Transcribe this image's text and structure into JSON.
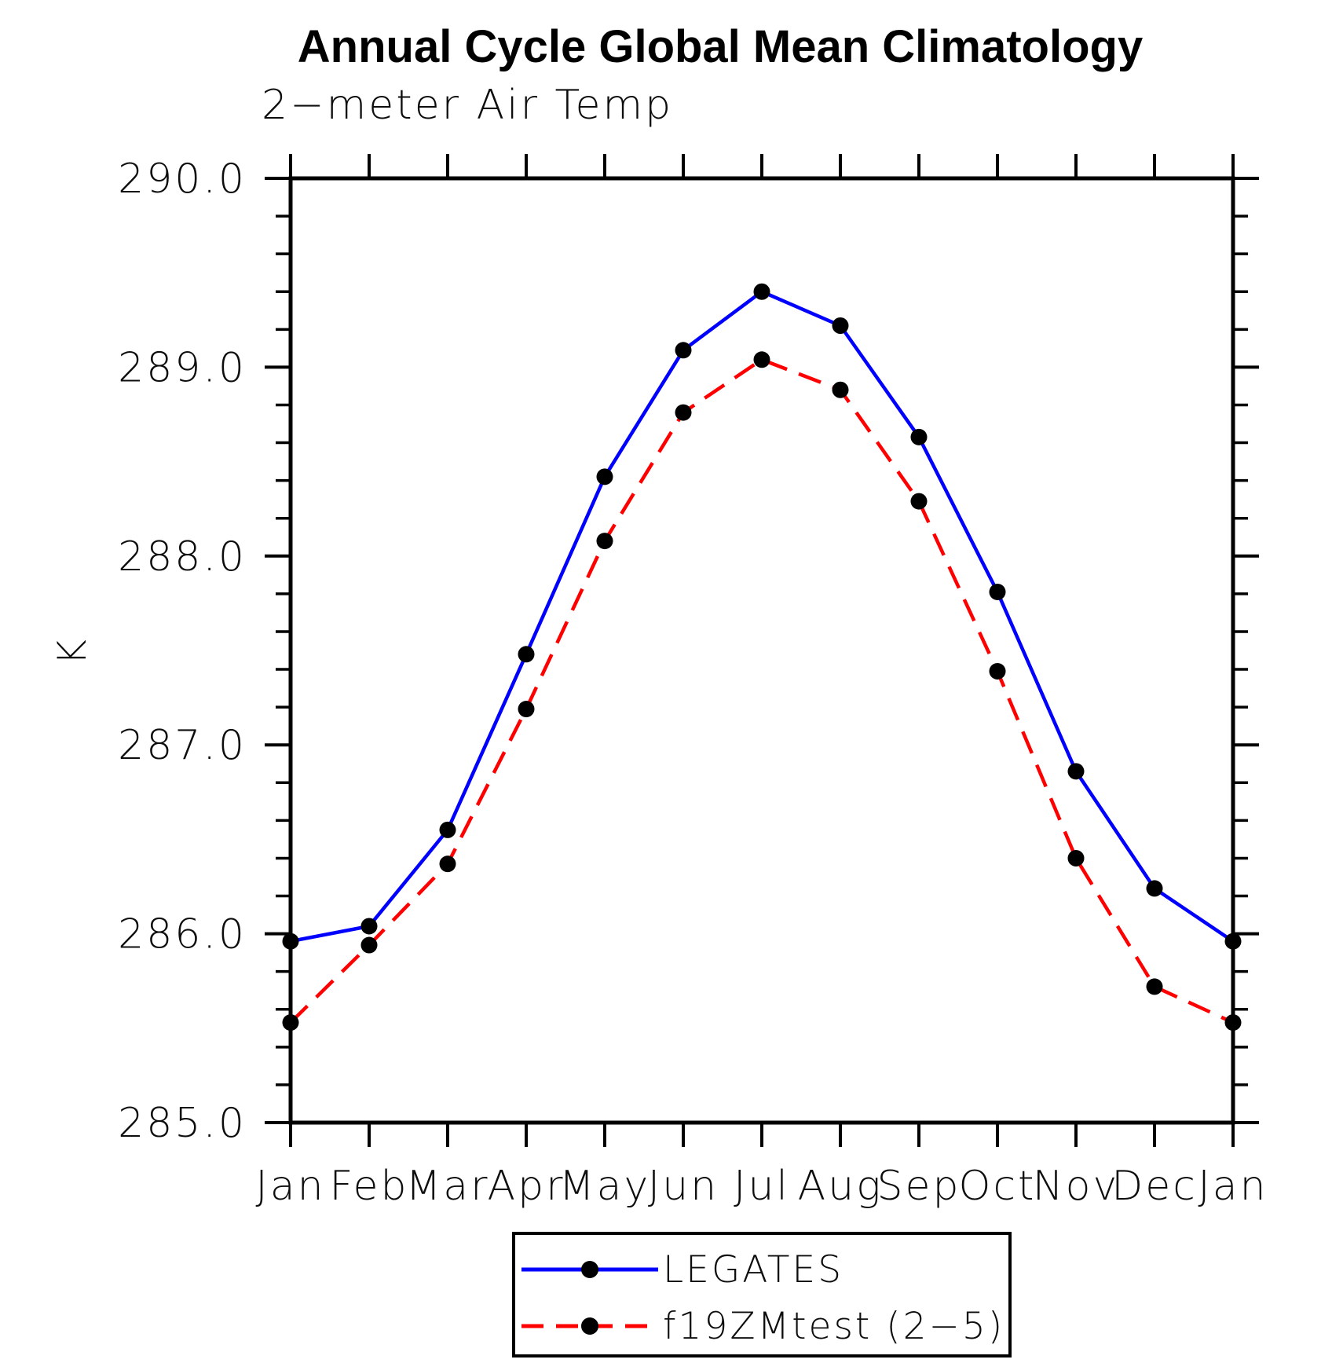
{
  "chart": {
    "window_background": "#ffffff"
  },
  "chart_data": {
    "type": "line",
    "title": "Annual Cycle Global Mean Climatology",
    "subtitle": "2−meter Air Temp",
    "ylabel": "K",
    "xlabel": "",
    "categories": [
      "Jan",
      "Feb",
      "Mar",
      "Apr",
      "May",
      "Jun",
      "Jul",
      "Aug",
      "Sep",
      "Oct",
      "Nov",
      "Dec",
      "Jan"
    ],
    "series": [
      {
        "name": "LEGATES",
        "color": "#0000ff",
        "line_style": "solid",
        "marker": "filled-circle",
        "values": [
          285.96,
          286.04,
          286.55,
          287.48,
          288.42,
          289.09,
          289.4,
          289.22,
          288.63,
          287.81,
          286.86,
          286.24,
          285.96
        ]
      },
      {
        "name": "f19ZMtest (2−5)",
        "color": "#ff0000",
        "line_style": "dashed",
        "marker": "filled-circle",
        "values": [
          285.53,
          285.94,
          286.37,
          287.19,
          288.08,
          288.76,
          289.04,
          288.88,
          288.29,
          287.39,
          286.4,
          285.72,
          285.53
        ]
      }
    ],
    "ylim": [
      285.0,
      290.0
    ],
    "yticks": [
      {
        "value": 285.0,
        "label": "285.0"
      },
      {
        "value": 286.0,
        "label": "286.0"
      },
      {
        "value": 287.0,
        "label": "287.0"
      },
      {
        "value": 288.0,
        "label": "288.0"
      },
      {
        "value": 289.0,
        "label": "289.0"
      },
      {
        "value": 290.0,
        "label": "290.0"
      }
    ],
    "yminor_step": 0.2,
    "marker_color": "#000000",
    "axis_color": "#000000",
    "grid": false,
    "legend_position": "bottom-center"
  }
}
